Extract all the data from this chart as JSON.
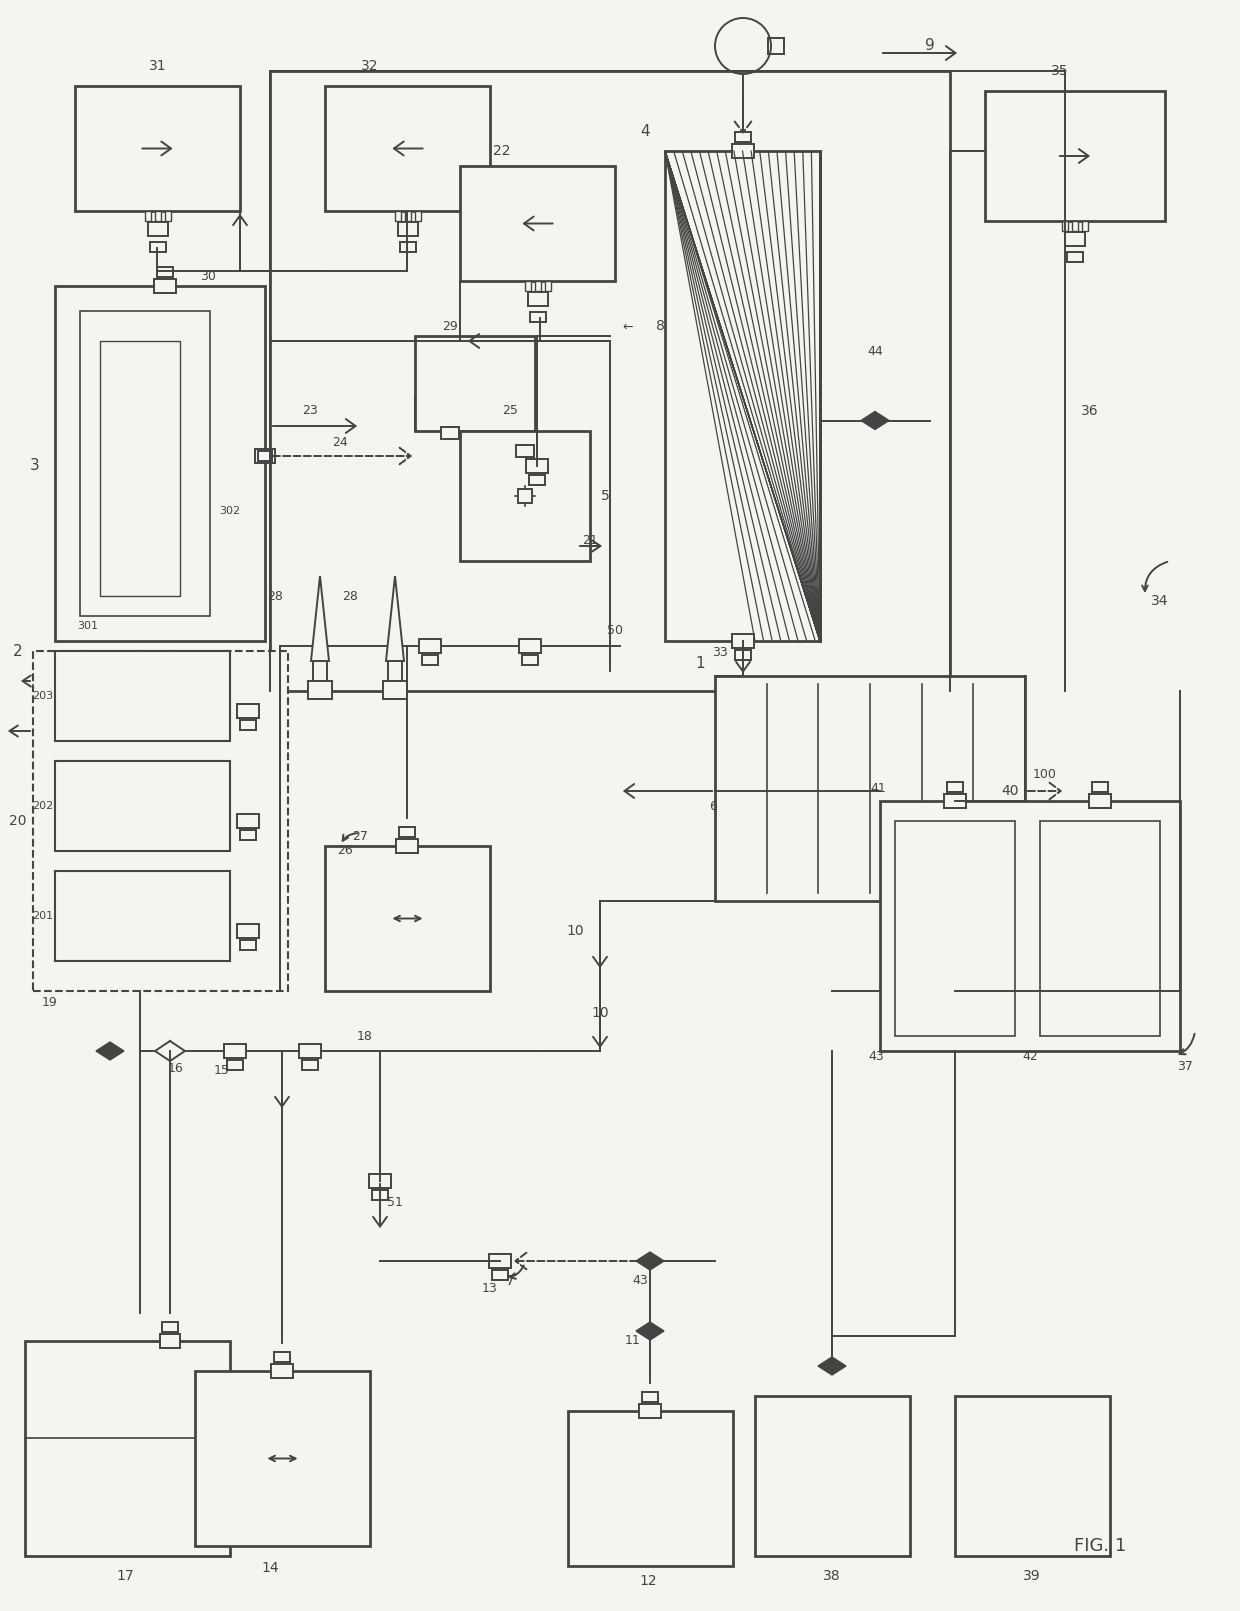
{
  "bg": "#f5f5f0",
  "lc": "#444444",
  "lw": 1.4,
  "fig_label": "FIG. 1"
}
